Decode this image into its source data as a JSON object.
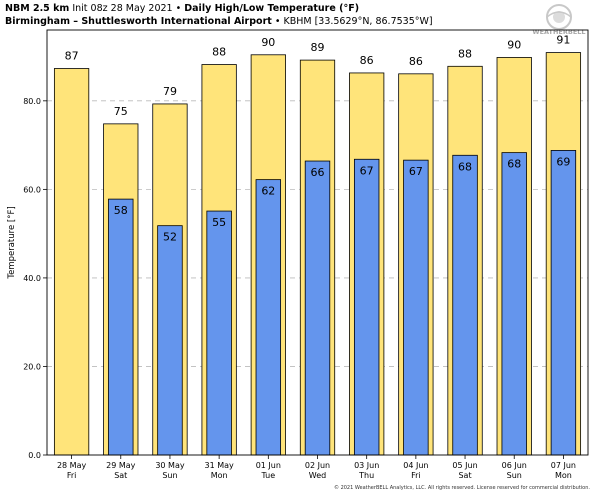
{
  "header": {
    "model": "NBM 2.5 km",
    "init": "Init 08z 28 May 2021",
    "sep": "•",
    "title": "Daily High/Low Temperature (°F)",
    "station": "Birmingham – Shuttlesworth International Airport",
    "station_info": "KBHM [33.5629°N, 86.7535°W]"
  },
  "logo": {
    "text": "WEATHERBELL"
  },
  "copyright": "© 2021 WeatherBELL Analytics, LLC. All rights reserved. License reserved for commercial distribution.",
  "colors": {
    "high": "#ffe47a",
    "low": "#6495ed",
    "edge": "#000000",
    "grid": "#bbbbbb"
  },
  "chart_data": {
    "type": "bar",
    "categories": [
      "28 May\nFri",
      "29 May\nSat",
      "30 May\nSun",
      "31 May\nMon",
      "01 Jun\nTue",
      "02 Jun\nWed",
      "03 Jun\nThu",
      "04 Jun\nFri",
      "05 Jun\nSat",
      "06 Jun\nSun",
      "07 Jun\nMon"
    ],
    "series": [
      {
        "name": "High",
        "values": [
          87.3,
          74.8,
          79.3,
          88.2,
          90.4,
          89.2,
          86.3,
          86.1,
          87.8,
          89.8,
          90.9
        ],
        "labels": [
          "87",
          "75",
          "79",
          "88",
          "90",
          "89",
          "86",
          "86",
          "88",
          "90",
          "91"
        ]
      },
      {
        "name": "Low",
        "values": [
          null,
          57.8,
          51.8,
          55.1,
          62.2,
          66.4,
          66.8,
          66.6,
          67.7,
          68.3,
          68.8
        ],
        "labels": [
          "",
          "58",
          "52",
          "55",
          "62",
          "66",
          "67",
          "67",
          "68",
          "68",
          "69"
        ]
      }
    ],
    "ylabel": "Temperature [°F]",
    "ylim": [
      0,
      96
    ],
    "yticks": [
      0,
      20,
      40,
      60,
      80
    ],
    "ytick_labels": [
      "0.0",
      "20.0",
      "40.0",
      "60.0",
      "80.0"
    ],
    "grid": true
  }
}
